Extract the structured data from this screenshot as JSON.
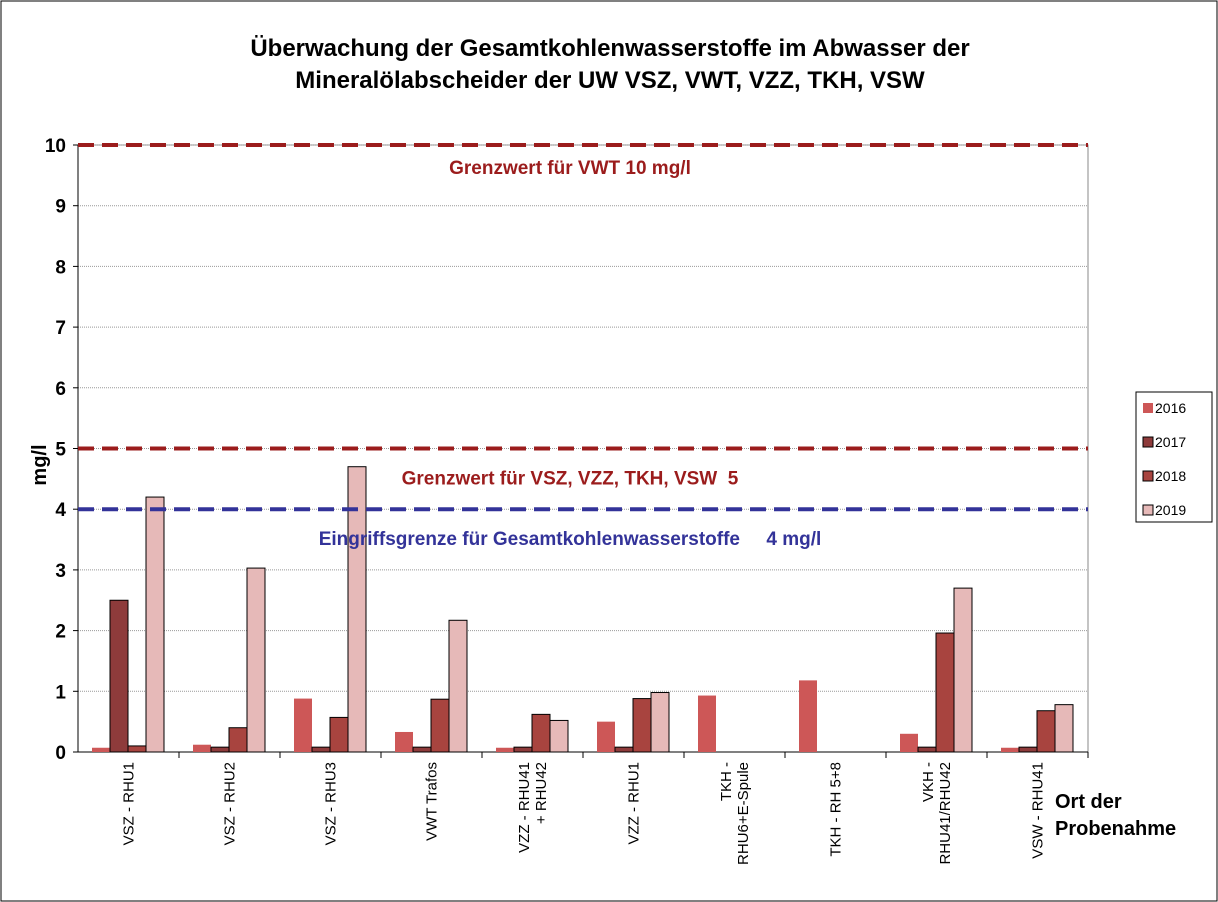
{
  "chart_data": {
    "type": "bar",
    "title": [
      "Überwachung der Gesamtkohlenwasserstoffe im Abwasser der",
      "Mineralölabscheider der UW VSZ, VWT, VZZ, TKH, VSW"
    ],
    "y_label": "mg/l",
    "x_label": [
      "Ort der",
      "Probenahme"
    ],
    "categories": [
      "VSZ - RHU1",
      "VSZ - RHU2",
      "VSZ - RHU3",
      "VWT Trafos",
      "VZZ - RHU41 + RHU42",
      "VZZ - RHU1",
      "TKH - RHU6+E-Spule",
      "TKH - RH 5+8",
      "VKH - RHU41/RHU42",
      "VSW - RHU41"
    ],
    "series": [
      {
        "name": "2016",
        "color": "#cd5757",
        "values": [
          0.07,
          0.12,
          0.88,
          0.33,
          0.07,
          0.5,
          0.93,
          1.18,
          0.3,
          0.07
        ]
      },
      {
        "name": "2017",
        "color": "#8e3b3b",
        "values": [
          2.5,
          0.08,
          0.08,
          0.08,
          0.08,
          0.08,
          null,
          null,
          0.08,
          0.08
        ]
      },
      {
        "name": "2018",
        "color": "#a8443f",
        "values": [
          0.1,
          0.4,
          0.57,
          0.87,
          0.62,
          0.88,
          null,
          null,
          1.96,
          0.68
        ]
      },
      {
        "name": "2019",
        "color": "#e6b9b8",
        "values": [
          4.2,
          3.03,
          4.7,
          2.17,
          0.52,
          0.98,
          null,
          null,
          2.7,
          0.78
        ]
      }
    ],
    "reference_lines": [
      {
        "value": 10,
        "label": "Grenzwert für VWT 10 mg/l",
        "color": "#9b1c1c"
      },
      {
        "value": 5,
        "label": "Grenzwert für VSZ, VZZ, TKH, VSW  5",
        "color": "#9b1c1c"
      },
      {
        "value": 4,
        "label": "Eingriffsgrenze für Gesamtkohlenwasserstoffe     4 mg/l",
        "color": "#333399"
      }
    ],
    "ylim": [
      0,
      10
    ],
    "yticks": [
      0,
      1,
      2,
      3,
      4,
      5,
      6,
      7,
      8,
      9,
      10
    ],
    "grid": true,
    "legend": "right"
  }
}
